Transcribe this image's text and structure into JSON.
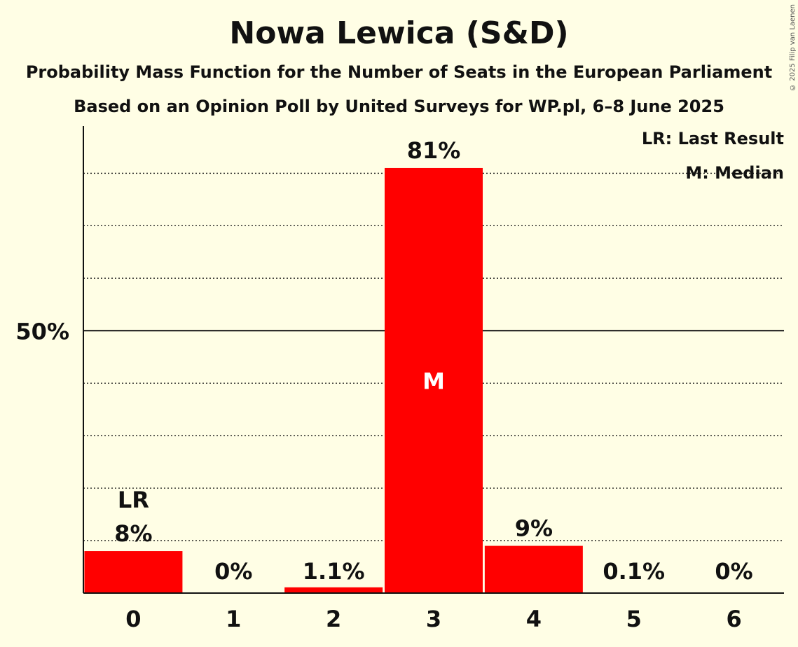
{
  "title": "Nowa Lewica (S&D)",
  "subtitle": "Probability Mass Function for the Number of Seats in the European Parliament",
  "source": "Based on an Opinion Poll by United Surveys for WP.pl, 6–8 June 2025",
  "copyright": "© 2025 Filip van Laenen",
  "legend": {
    "last_result": "LR: Last Result",
    "median": "M: Median"
  },
  "colors": {
    "bar": "#FF0000",
    "background": "#FFFEE5",
    "text": "#111111"
  },
  "chart_data": {
    "type": "bar",
    "categories": [
      "0",
      "1",
      "2",
      "3",
      "4",
      "5",
      "6"
    ],
    "values": [
      8,
      0,
      1.1,
      81,
      9,
      0.1,
      0
    ],
    "value_labels": [
      "8%",
      "0%",
      "1.1%",
      "81%",
      "9%",
      "0.1%",
      "0%"
    ],
    "ylim": [
      0,
      89
    ],
    "y_tick_label": "50%",
    "y_tick_value": 50,
    "gridlines": [
      10,
      20,
      30,
      40,
      60,
      70,
      80
    ],
    "last_result_index": 0,
    "last_result_label": "LR",
    "median_index": 3,
    "median_label": "M"
  }
}
